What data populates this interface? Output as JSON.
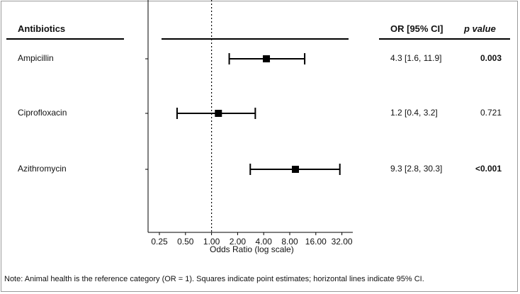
{
  "table": {
    "header_label": "Antibiotics",
    "header_or": "OR [95% CI]",
    "header_p": "p value"
  },
  "note": "Note: Animal health is the reference category (OR = 1). Squares indicate point estimates; horizontal lines indicate 95% CI.",
  "chart_data": {
    "type": "forest",
    "xlabel": "Odds Ratio (log scale)",
    "xscale": "log2",
    "xlim": [
      0.25,
      32
    ],
    "xticks": [
      0.25,
      0.5,
      1,
      2,
      4,
      8,
      16,
      32
    ],
    "xtick_labels": [
      "0.25",
      "0.50",
      "1.00",
      "2.00",
      "4.00",
      "8.00",
      "16.00",
      "32.00"
    ],
    "reference_line": 1,
    "rows": [
      {
        "label": "Ampicillin",
        "or": 4.3,
        "lo": 1.6,
        "hi": 11.9,
        "or_text": "4.3 [1.6, 11.9]",
        "p_text": "0.003",
        "p_bold": true
      },
      {
        "label": "Ciprofloxacin",
        "or": 1.2,
        "lo": 0.4,
        "hi": 3.2,
        "or_text": "1.2 [0.4, 3.2]",
        "p_text": "0.721",
        "p_bold": false
      },
      {
        "label": "Azithromycin",
        "or": 9.3,
        "lo": 2.8,
        "hi": 30.3,
        "or_text": "9.3 [2.8, 30.3]",
        "p_text": "<0.001",
        "p_bold": true
      }
    ]
  }
}
